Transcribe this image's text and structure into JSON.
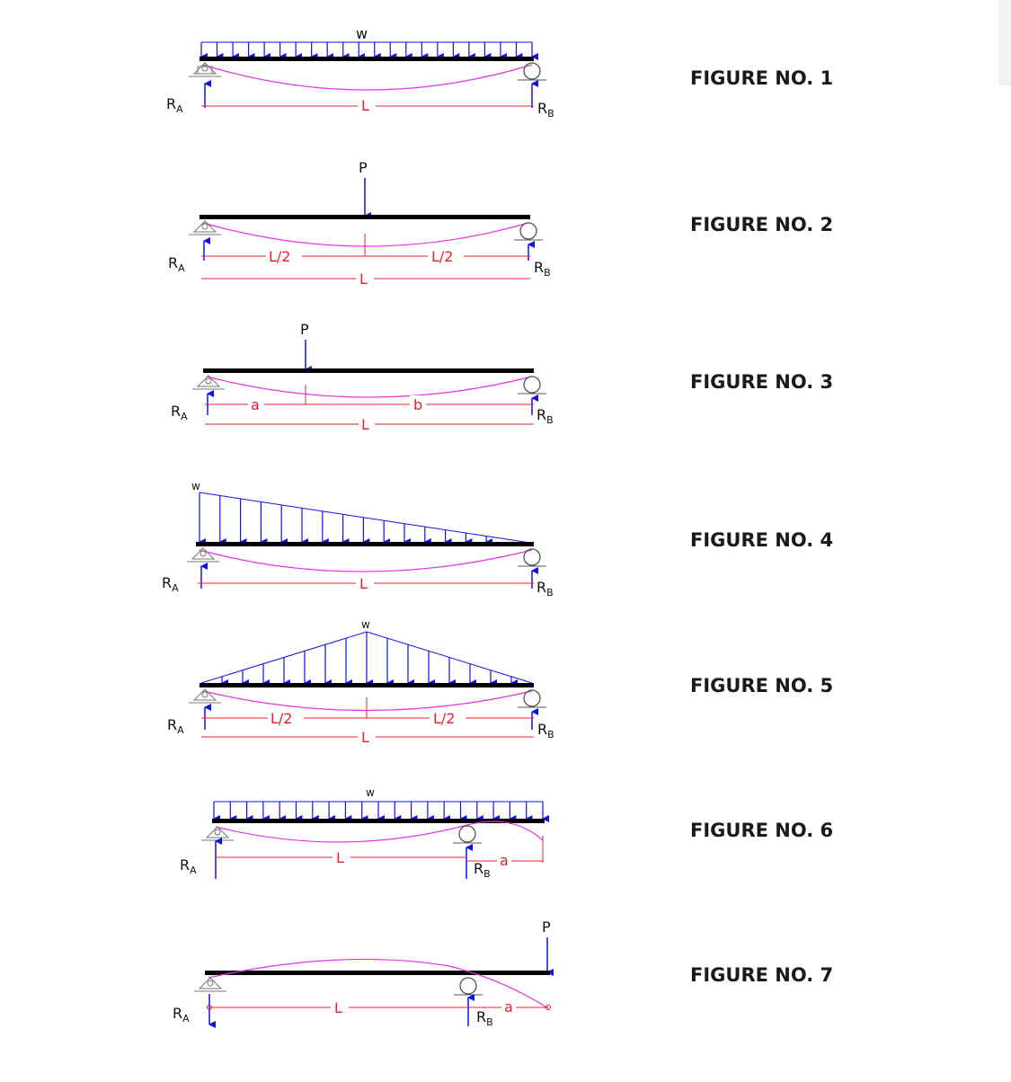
{
  "figures": [
    {
      "title": "FIGURE NO. 1",
      "load": "w",
      "span": "L",
      "reaction_a": "R",
      "reaction_a_sub": "A",
      "reaction_b": "R",
      "reaction_b_sub": "B"
    },
    {
      "title": "FIGURE NO. 2",
      "load": "P",
      "span": "L",
      "half_left": "L/2",
      "half_right": "L/2",
      "reaction_a": "R",
      "reaction_a_sub": "A",
      "reaction_b": "R",
      "reaction_b_sub": "B"
    },
    {
      "title": "FIGURE NO. 3",
      "load": "P",
      "span": "L",
      "seg_a": "a",
      "seg_b": "b",
      "reaction_a": "R",
      "reaction_a_sub": "A",
      "reaction_b": "R",
      "reaction_b_sub": "B"
    },
    {
      "title": "FIGURE NO. 4",
      "load": "w",
      "span": "L",
      "reaction_a": "R",
      "reaction_a_sub": "A",
      "reaction_b": "R",
      "reaction_b_sub": "B"
    },
    {
      "title": "FIGURE NO. 5",
      "load": "w",
      "span": "L",
      "half_left": "L/2",
      "half_right": "L/2",
      "reaction_a": "R",
      "reaction_a_sub": "A",
      "reaction_b": "R",
      "reaction_b_sub": "B"
    },
    {
      "title": "FIGURE NO. 6",
      "load": "w",
      "span": "L",
      "overhang": "a",
      "reaction_a": "R",
      "reaction_a_sub": "A",
      "reaction_b": "R",
      "reaction_b_sub": "B"
    },
    {
      "title": "FIGURE NO. 7",
      "load": "P",
      "span": "L",
      "overhang": "a",
      "reaction_a": "R",
      "reaction_a_sub": "A",
      "reaction_b": "R",
      "reaction_b_sub": "B"
    }
  ],
  "colors": {
    "beam": "#000000",
    "load": "#1010e8",
    "deflection": "#e830e8",
    "dimension": "#e8202a",
    "title": "#1a1a1a"
  }
}
